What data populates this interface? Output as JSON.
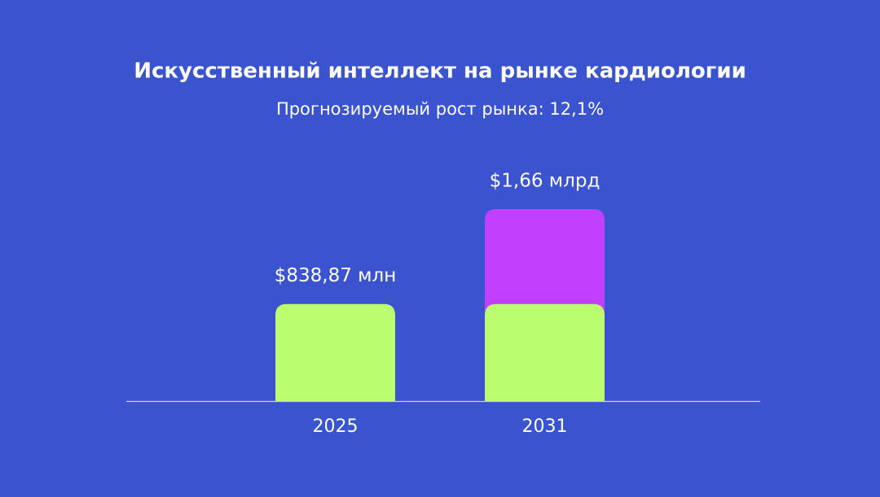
{
  "chart_data": {
    "type": "bar",
    "title": "Искусственный интеллект на рынке кардиологии",
    "subtitle": "Прогнозируемый рост рынка: 12,1%",
    "categories": [
      "2025",
      "2031"
    ],
    "values": [
      838.87,
      1660
    ],
    "value_labels": [
      "$838,87 млн",
      "$1,66 млрд"
    ],
    "color": "#bafd6e",
    "growth_color": "#c23ffb"
  }
}
